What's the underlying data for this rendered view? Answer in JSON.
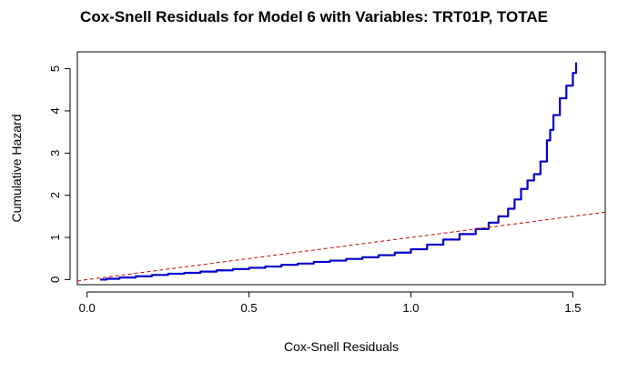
{
  "chart_data": {
    "type": "line",
    "title": "Cox-Snell Residuals for Model 6 with Variables: TRT01P, TOTAE",
    "xlabel": "Cox-Snell Residuals",
    "ylabel": "Cumulative Hazard",
    "xlim": [
      -0.03,
      1.6
    ],
    "ylim": [
      -0.12,
      5.4
    ],
    "xticks": [
      0.0,
      0.5,
      1.0,
      1.5
    ],
    "xtick_labels": [
      "0.0",
      "0.5",
      "1.0",
      "1.5"
    ],
    "yticks": [
      0,
      1,
      2,
      3,
      4,
      5
    ],
    "ytick_labels": [
      "0",
      "1",
      "2",
      "3",
      "4",
      "5"
    ],
    "grid": false,
    "legend": "none",
    "series": [
      {
        "style": "step",
        "color": "#0000cc",
        "points": [
          [
            0.04,
            0.0
          ],
          [
            0.06,
            0.02
          ],
          [
            0.1,
            0.05
          ],
          [
            0.15,
            0.08
          ],
          [
            0.2,
            0.11
          ],
          [
            0.25,
            0.14
          ],
          [
            0.3,
            0.16
          ],
          [
            0.35,
            0.19
          ],
          [
            0.4,
            0.22
          ],
          [
            0.45,
            0.25
          ],
          [
            0.5,
            0.28
          ],
          [
            0.55,
            0.31
          ],
          [
            0.6,
            0.35
          ],
          [
            0.65,
            0.38
          ],
          [
            0.7,
            0.42
          ],
          [
            0.75,
            0.45
          ],
          [
            0.8,
            0.49
          ],
          [
            0.85,
            0.53
          ],
          [
            0.9,
            0.58
          ],
          [
            0.95,
            0.64
          ],
          [
            1.0,
            0.72
          ],
          [
            1.05,
            0.83
          ],
          [
            1.1,
            0.95
          ],
          [
            1.15,
            1.08
          ],
          [
            1.2,
            1.2
          ],
          [
            1.24,
            1.35
          ],
          [
            1.27,
            1.5
          ],
          [
            1.3,
            1.68
          ],
          [
            1.32,
            1.9
          ],
          [
            1.34,
            2.15
          ],
          [
            1.36,
            2.35
          ],
          [
            1.38,
            2.5
          ],
          [
            1.4,
            2.8
          ],
          [
            1.42,
            3.3
          ],
          [
            1.43,
            3.55
          ],
          [
            1.44,
            3.9
          ],
          [
            1.46,
            4.3
          ],
          [
            1.48,
            4.6
          ],
          [
            1.5,
            4.9
          ],
          [
            1.51,
            5.15
          ]
        ]
      },
      {
        "style": "dashed",
        "color": "#cc0000",
        "points": [
          [
            -0.03,
            -0.03
          ],
          [
            1.6,
            1.6
          ]
        ]
      }
    ]
  }
}
